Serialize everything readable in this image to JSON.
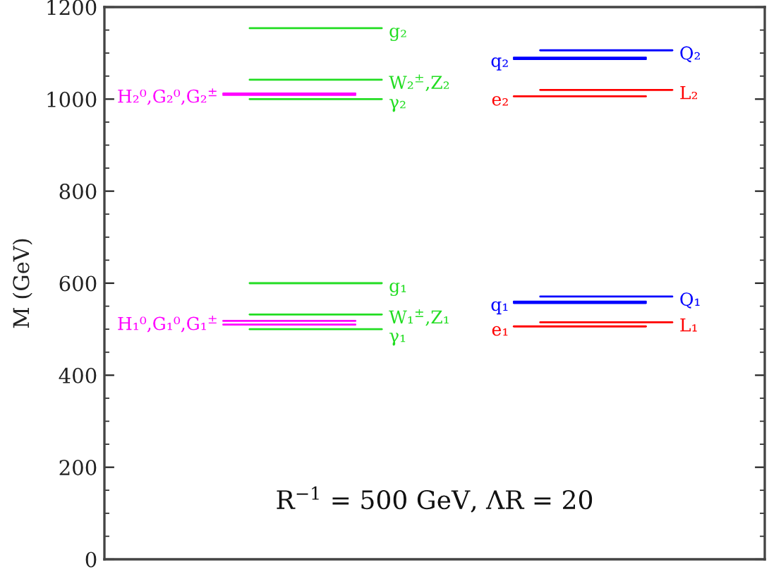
{
  "chart_data": {
    "type": "line",
    "ylabel": "M (GeV)",
    "annotations": [
      "R$^{−1}$ = 500 GeV, ΛR = 20"
    ],
    "categories": [
      null,
      null,
      null,
      null,
      null,
      null,
      null,
      null,
      null,
      null,
      null,
      null,
      null,
      null,
      null,
      null,
      null,
      null,
      null,
      null,
      null,
      null,
      null,
      null,
      null
    ],
    "ylim": [
      0,
      1200
    ],
    "yticks": [
      0,
      {
        "value": 50,
        "label": null
      },
      {
        "value": 100,
        "label": null
      },
      {
        "value": 150,
        "label": null
      },
      200,
      {
        "value": 250,
        "label": null
      },
      {
        "value": 300,
        "label": null
      },
      {
        "value": 350,
        "label": null
      },
      400,
      {
        "value": 450,
        "label": null
      },
      {
        "value": 500,
        "label": null
      },
      {
        "value": 550,
        "label": null
      },
      600,
      {
        "value": 650,
        "label": null
      },
      {
        "value": 700,
        "label": null
      },
      {
        "value": 750,
        "label": null
      },
      800,
      {
        "value": 850,
        "label": null
      },
      {
        "value": 900,
        "label": null
      },
      {
        "value": 950,
        "label": null
      },
      1000,
      {
        "value": 1050,
        "label": null
      },
      {
        "value": 1100,
        "label": null
      },
      {
        "value": 1150,
        "label": null
      },
      1200
    ],
    "tick_labels": "y",
    "series": [
      {
        "name": "g₂",
        "color": "#22dd22",
        "values": [
          null,
          null,
          null,
          null,
          null,
          1154,
          1154,
          1154,
          1154,
          1154,
          1154,
          null,
          null,
          null,
          null,
          null,
          null,
          null,
          null,
          null,
          null,
          null,
          null,
          null,
          null
        ]
      },
      {
        "name": "W₂$^{±}$,Z₂",
        "color": "#22dd22",
        "values": [
          null,
          null,
          null,
          null,
          null,
          1042,
          1042,
          1042,
          1042,
          1042,
          1042,
          null,
          null,
          null,
          null,
          null,
          null,
          null,
          null,
          null,
          null,
          null,
          null,
          null,
          null
        ]
      },
      {
        "name": "H₂⁰,G₂⁰,G₂$^{±}$",
        "color": "#ff00ff",
        "values": [
          null,
          null,
          null,
          null,
          1012,
          1012,
          1012,
          1012,
          1012,
          1012,
          null,
          null,
          null,
          null,
          null,
          null,
          null,
          null,
          null,
          null,
          null,
          null,
          null,
          null,
          null
        ]
      },
      {
        "color": "#ff00ff",
        "values": [
          null,
          null,
          null,
          null,
          1009,
          1009,
          1009,
          1009,
          1009,
          1009,
          null,
          null,
          null,
          null,
          null,
          null,
          null,
          null,
          null,
          null,
          null,
          null,
          null,
          null,
          null
        ]
      },
      {
        "name": "γ₂",
        "color": "#22dd22",
        "values": [
          null,
          null,
          null,
          null,
          null,
          1000,
          1000,
          1000,
          1000,
          1000,
          1000,
          null,
          null,
          null,
          null,
          null,
          null,
          null,
          null,
          null,
          null,
          null,
          null,
          null,
          null
        ]
      },
      {
        "name": "Q₂",
        "color": "#0000ff",
        "values": [
          null,
          null,
          null,
          null,
          null,
          null,
          null,
          null,
          null,
          null,
          null,
          null,
          null,
          null,
          null,
          null,
          1106,
          1106,
          1106,
          1106,
          1106,
          1106,
          null,
          null,
          null
        ]
      },
      {
        "name": "q₂",
        "color": "#0000ff",
        "values": [
          null,
          null,
          null,
          null,
          null,
          null,
          null,
          null,
          null,
          null,
          null,
          null,
          null,
          null,
          null,
          1090,
          1090,
          1090,
          1090,
          1090,
          1090,
          null,
          null,
          null,
          null
        ]
      },
      {
        "color": "#0000ff",
        "values": [
          null,
          null,
          null,
          null,
          null,
          null,
          null,
          null,
          null,
          null,
          null,
          null,
          null,
          null,
          null,
          1087,
          1087,
          1087,
          1087,
          1087,
          1087,
          null,
          null,
          null,
          null
        ]
      },
      {
        "name": "L₂",
        "color": "#ff0000",
        "values": [
          null,
          null,
          null,
          null,
          null,
          null,
          null,
          null,
          null,
          null,
          null,
          null,
          null,
          null,
          null,
          null,
          1020,
          1020,
          1020,
          1020,
          1020,
          1020,
          null,
          null,
          null
        ]
      },
      {
        "name": "e₂",
        "color": "#ff0000",
        "values": [
          null,
          null,
          null,
          null,
          null,
          null,
          null,
          null,
          null,
          null,
          null,
          null,
          null,
          null,
          null,
          1006,
          1006,
          1006,
          1006,
          1006,
          1006,
          null,
          null,
          null,
          null
        ]
      },
      {
        "name": "g₁",
        "color": "#22dd22",
        "values": [
          null,
          null,
          null,
          null,
          null,
          600,
          600,
          600,
          600,
          600,
          600,
          null,
          null,
          null,
          null,
          null,
          null,
          null,
          null,
          null,
          null,
          null,
          null,
          null,
          null
        ]
      },
      {
        "name": "W₁$^{±}$,Z₁",
        "color": "#22dd22",
        "values": [
          null,
          null,
          null,
          null,
          null,
          532,
          532,
          532,
          532,
          532,
          532,
          null,
          null,
          null,
          null,
          null,
          null,
          null,
          null,
          null,
          null,
          null,
          null,
          null,
          null
        ]
      },
      {
        "name": "H₁⁰,G₁⁰,G₁$^{±}$",
        "color": "#ff00ff",
        "values": [
          null,
          null,
          null,
          null,
          518,
          518,
          518,
          518,
          518,
          518,
          null,
          null,
          null,
          null,
          null,
          null,
          null,
          null,
          null,
          null,
          null,
          null,
          null,
          null,
          null
        ]
      },
      {
        "color": "#ff00ff",
        "values": [
          null,
          null,
          null,
          null,
          510,
          510,
          510,
          510,
          510,
          510,
          null,
          null,
          null,
          null,
          null,
          null,
          null,
          null,
          null,
          null,
          null,
          null,
          null,
          null,
          null
        ]
      },
      {
        "name": "γ₁",
        "color": "#22dd22",
        "values": [
          null,
          null,
          null,
          null,
          null,
          500,
          500,
          500,
          500,
          500,
          500,
          null,
          null,
          null,
          null,
          null,
          null,
          null,
          null,
          null,
          null,
          null,
          null,
          null,
          null
        ]
      },
      {
        "name": "Q₁",
        "color": "#0000ff",
        "values": [
          null,
          null,
          null,
          null,
          null,
          null,
          null,
          null,
          null,
          null,
          null,
          null,
          null,
          null,
          null,
          null,
          571,
          571,
          571,
          571,
          571,
          571,
          null,
          null,
          null
        ]
      },
      {
        "name": "q₁",
        "color": "#0000ff",
        "values": [
          null,
          null,
          null,
          null,
          null,
          null,
          null,
          null,
          null,
          null,
          null,
          null,
          null,
          null,
          null,
          560,
          560,
          560,
          560,
          560,
          560,
          null,
          null,
          null,
          null
        ]
      },
      {
        "color": "#0000ff",
        "values": [
          null,
          null,
          null,
          null,
          null,
          null,
          null,
          null,
          null,
          null,
          null,
          null,
          null,
          null,
          null,
          557,
          557,
          557,
          557,
          557,
          557,
          null,
          null,
          null,
          null
        ]
      },
      {
        "name": "L₁",
        "color": "#ff0000",
        "values": [
          null,
          null,
          null,
          null,
          null,
          null,
          null,
          null,
          null,
          null,
          null,
          null,
          null,
          null,
          null,
          null,
          515,
          515,
          515,
          515,
          515,
          515,
          null,
          null,
          null
        ]
      },
      {
        "name": "e₁",
        "color": "#ff0000",
        "values": [
          null,
          null,
          null,
          null,
          null,
          null,
          null,
          null,
          null,
          null,
          null,
          null,
          null,
          null,
          null,
          506,
          506,
          506,
          506,
          506,
          506,
          null,
          null,
          null,
          null
        ]
      }
    ]
  }
}
